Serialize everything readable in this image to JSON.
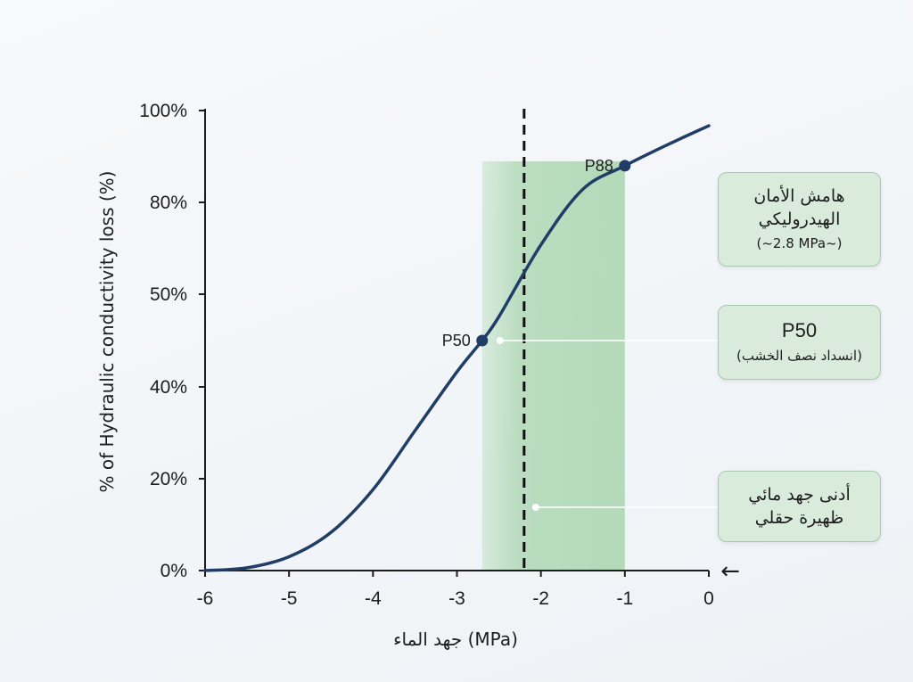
{
  "chart_data": {
    "type": "line",
    "xlabel": "جهد الماء (MPa)",
    "ylabel": "% of Hydraulic conductivity loss (%)",
    "xlim": [
      -6,
      0
    ],
    "x_ticks": [
      -6,
      -5,
      -4,
      -3,
      -2,
      -1,
      0
    ],
    "x_tick_labels": [
      "-6",
      "-5",
      "-4",
      "-3",
      "-2",
      "-1",
      "0"
    ],
    "y_tick_labels": [
      "0%",
      "20%",
      "40%",
      "50%",
      "80%",
      "100%"
    ],
    "grid": false,
    "series": [
      {
        "x": [
          -6.0,
          -5.5,
          -5.0,
          -4.5,
          -4.0,
          -3.5,
          -3.0,
          -2.7,
          -2.5,
          -2.0,
          -1.5,
          -1.0,
          -0.5,
          0.0
        ],
        "values": [
          0,
          0.6,
          3.0,
          8.3,
          17.6,
          30.4,
          43.2,
          50,
          55.2,
          70.8,
          82.9,
          88,
          92.5,
          96.7
        ]
      }
    ],
    "points": [
      {
        "label": "P50",
        "x": -2.7,
        "y": 50
      },
      {
        "label": "P88",
        "x": -1.0,
        "y": 88
      }
    ],
    "shaded_region": {
      "x_from": -2.7,
      "x_to": -1.0,
      "color": "#a8d5ae"
    },
    "reference_line": {
      "x": -2.2,
      "style": "dashed",
      "color": "#111111"
    },
    "line_color": "#1f3d66",
    "point_color": "#1f3d66"
  },
  "callouts": {
    "safety_margin": {
      "line1": "هامش الأمان",
      "line2": "الهيدروليكي",
      "sub": "(~2.8 MPa~)"
    },
    "p50": {
      "title": "P50",
      "sub": "(انسداد نصف الخشب)"
    },
    "min_potential": {
      "line1": "أدنى جهد مائي",
      "line2": "ظهيرة حقلي"
    }
  },
  "arrow_glyph": "←"
}
